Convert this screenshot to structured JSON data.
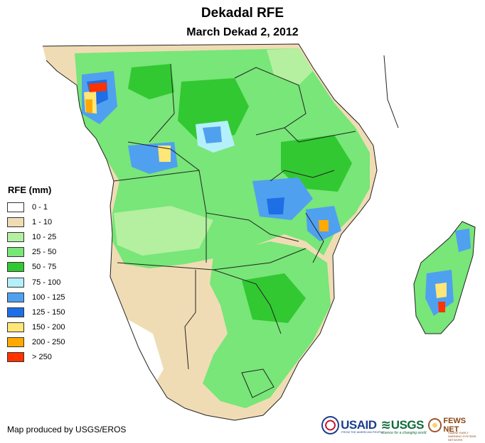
{
  "title": "Dekadal RFE",
  "subtitle": "March Dekad 2, 2012",
  "legend": {
    "title": "RFE (mm)",
    "items": [
      {
        "label": "0 - 1",
        "color": "#ffffff"
      },
      {
        "label": "1 - 10",
        "color": "#f0dcb4"
      },
      {
        "label": "10 - 25",
        "color": "#b4f0a0"
      },
      {
        "label": "25 - 50",
        "color": "#78e678"
      },
      {
        "label": "50 - 75",
        "color": "#32c832"
      },
      {
        "label": "75 - 100",
        "color": "#b4f0fa"
      },
      {
        "label": "100 - 125",
        "color": "#50a0f0"
      },
      {
        "label": "125 - 150",
        "color": "#1e6ee6"
      },
      {
        "label": "150 - 200",
        "color": "#ffe678"
      },
      {
        "label": "200 - 250",
        "color": "#ffaa00"
      },
      {
        "label": "> 250",
        "color": "#ff3200"
      }
    ]
  },
  "credit": "Map produced by USGS/EROS",
  "logos": {
    "usaid": "USAID",
    "usaid_sub": "FROM THE AMERICAN PEOPLE",
    "usgs": "USGS",
    "usgs_sub": "science for a changing world",
    "fews": "FEWS NET",
    "fews_sub": "FAMINE EARLY WARNING SYSTEMS NETWORK"
  }
}
